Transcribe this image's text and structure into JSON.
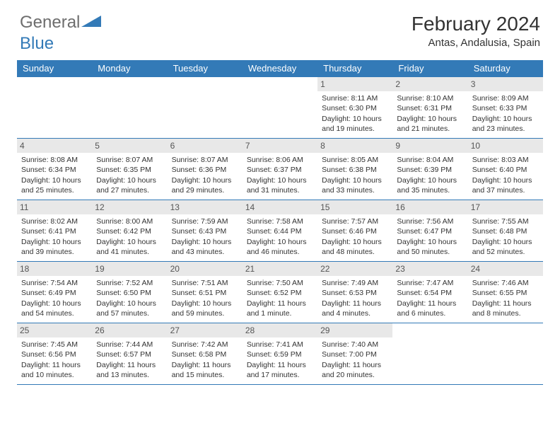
{
  "logo": {
    "general": "General",
    "blue": "Blue"
  },
  "header": {
    "month_title": "February 2024",
    "location": "Antas, Andalusia, Spain"
  },
  "colors": {
    "accent": "#337ab7",
    "header_bg": "#337ab7",
    "daynum_bg": "#e8e8e8",
    "text": "#333333",
    "logo_gray": "#6d6d6d"
  },
  "calendar": {
    "day_names": [
      "Sunday",
      "Monday",
      "Tuesday",
      "Wednesday",
      "Thursday",
      "Friday",
      "Saturday"
    ],
    "first_weekday_index": 4,
    "days": [
      {
        "n": "1",
        "sunrise": "Sunrise: 8:11 AM",
        "sunset": "Sunset: 6:30 PM",
        "daylight": "Daylight: 10 hours and 19 minutes."
      },
      {
        "n": "2",
        "sunrise": "Sunrise: 8:10 AM",
        "sunset": "Sunset: 6:31 PM",
        "daylight": "Daylight: 10 hours and 21 minutes."
      },
      {
        "n": "3",
        "sunrise": "Sunrise: 8:09 AM",
        "sunset": "Sunset: 6:33 PM",
        "daylight": "Daylight: 10 hours and 23 minutes."
      },
      {
        "n": "4",
        "sunrise": "Sunrise: 8:08 AM",
        "sunset": "Sunset: 6:34 PM",
        "daylight": "Daylight: 10 hours and 25 minutes."
      },
      {
        "n": "5",
        "sunrise": "Sunrise: 8:07 AM",
        "sunset": "Sunset: 6:35 PM",
        "daylight": "Daylight: 10 hours and 27 minutes."
      },
      {
        "n": "6",
        "sunrise": "Sunrise: 8:07 AM",
        "sunset": "Sunset: 6:36 PM",
        "daylight": "Daylight: 10 hours and 29 minutes."
      },
      {
        "n": "7",
        "sunrise": "Sunrise: 8:06 AM",
        "sunset": "Sunset: 6:37 PM",
        "daylight": "Daylight: 10 hours and 31 minutes."
      },
      {
        "n": "8",
        "sunrise": "Sunrise: 8:05 AM",
        "sunset": "Sunset: 6:38 PM",
        "daylight": "Daylight: 10 hours and 33 minutes."
      },
      {
        "n": "9",
        "sunrise": "Sunrise: 8:04 AM",
        "sunset": "Sunset: 6:39 PM",
        "daylight": "Daylight: 10 hours and 35 minutes."
      },
      {
        "n": "10",
        "sunrise": "Sunrise: 8:03 AM",
        "sunset": "Sunset: 6:40 PM",
        "daylight": "Daylight: 10 hours and 37 minutes."
      },
      {
        "n": "11",
        "sunrise": "Sunrise: 8:02 AM",
        "sunset": "Sunset: 6:41 PM",
        "daylight": "Daylight: 10 hours and 39 minutes."
      },
      {
        "n": "12",
        "sunrise": "Sunrise: 8:00 AM",
        "sunset": "Sunset: 6:42 PM",
        "daylight": "Daylight: 10 hours and 41 minutes."
      },
      {
        "n": "13",
        "sunrise": "Sunrise: 7:59 AM",
        "sunset": "Sunset: 6:43 PM",
        "daylight": "Daylight: 10 hours and 43 minutes."
      },
      {
        "n": "14",
        "sunrise": "Sunrise: 7:58 AM",
        "sunset": "Sunset: 6:44 PM",
        "daylight": "Daylight: 10 hours and 46 minutes."
      },
      {
        "n": "15",
        "sunrise": "Sunrise: 7:57 AM",
        "sunset": "Sunset: 6:46 PM",
        "daylight": "Daylight: 10 hours and 48 minutes."
      },
      {
        "n": "16",
        "sunrise": "Sunrise: 7:56 AM",
        "sunset": "Sunset: 6:47 PM",
        "daylight": "Daylight: 10 hours and 50 minutes."
      },
      {
        "n": "17",
        "sunrise": "Sunrise: 7:55 AM",
        "sunset": "Sunset: 6:48 PM",
        "daylight": "Daylight: 10 hours and 52 minutes."
      },
      {
        "n": "18",
        "sunrise": "Sunrise: 7:54 AM",
        "sunset": "Sunset: 6:49 PM",
        "daylight": "Daylight: 10 hours and 54 minutes."
      },
      {
        "n": "19",
        "sunrise": "Sunrise: 7:52 AM",
        "sunset": "Sunset: 6:50 PM",
        "daylight": "Daylight: 10 hours and 57 minutes."
      },
      {
        "n": "20",
        "sunrise": "Sunrise: 7:51 AM",
        "sunset": "Sunset: 6:51 PM",
        "daylight": "Daylight: 10 hours and 59 minutes."
      },
      {
        "n": "21",
        "sunrise": "Sunrise: 7:50 AM",
        "sunset": "Sunset: 6:52 PM",
        "daylight": "Daylight: 11 hours and 1 minute."
      },
      {
        "n": "22",
        "sunrise": "Sunrise: 7:49 AM",
        "sunset": "Sunset: 6:53 PM",
        "daylight": "Daylight: 11 hours and 4 minutes."
      },
      {
        "n": "23",
        "sunrise": "Sunrise: 7:47 AM",
        "sunset": "Sunset: 6:54 PM",
        "daylight": "Daylight: 11 hours and 6 minutes."
      },
      {
        "n": "24",
        "sunrise": "Sunrise: 7:46 AM",
        "sunset": "Sunset: 6:55 PM",
        "daylight": "Daylight: 11 hours and 8 minutes."
      },
      {
        "n": "25",
        "sunrise": "Sunrise: 7:45 AM",
        "sunset": "Sunset: 6:56 PM",
        "daylight": "Daylight: 11 hours and 10 minutes."
      },
      {
        "n": "26",
        "sunrise": "Sunrise: 7:44 AM",
        "sunset": "Sunset: 6:57 PM",
        "daylight": "Daylight: 11 hours and 13 minutes."
      },
      {
        "n": "27",
        "sunrise": "Sunrise: 7:42 AM",
        "sunset": "Sunset: 6:58 PM",
        "daylight": "Daylight: 11 hours and 15 minutes."
      },
      {
        "n": "28",
        "sunrise": "Sunrise: 7:41 AM",
        "sunset": "Sunset: 6:59 PM",
        "daylight": "Daylight: 11 hours and 17 minutes."
      },
      {
        "n": "29",
        "sunrise": "Sunrise: 7:40 AM",
        "sunset": "Sunset: 7:00 PM",
        "daylight": "Daylight: 11 hours and 20 minutes."
      }
    ]
  }
}
